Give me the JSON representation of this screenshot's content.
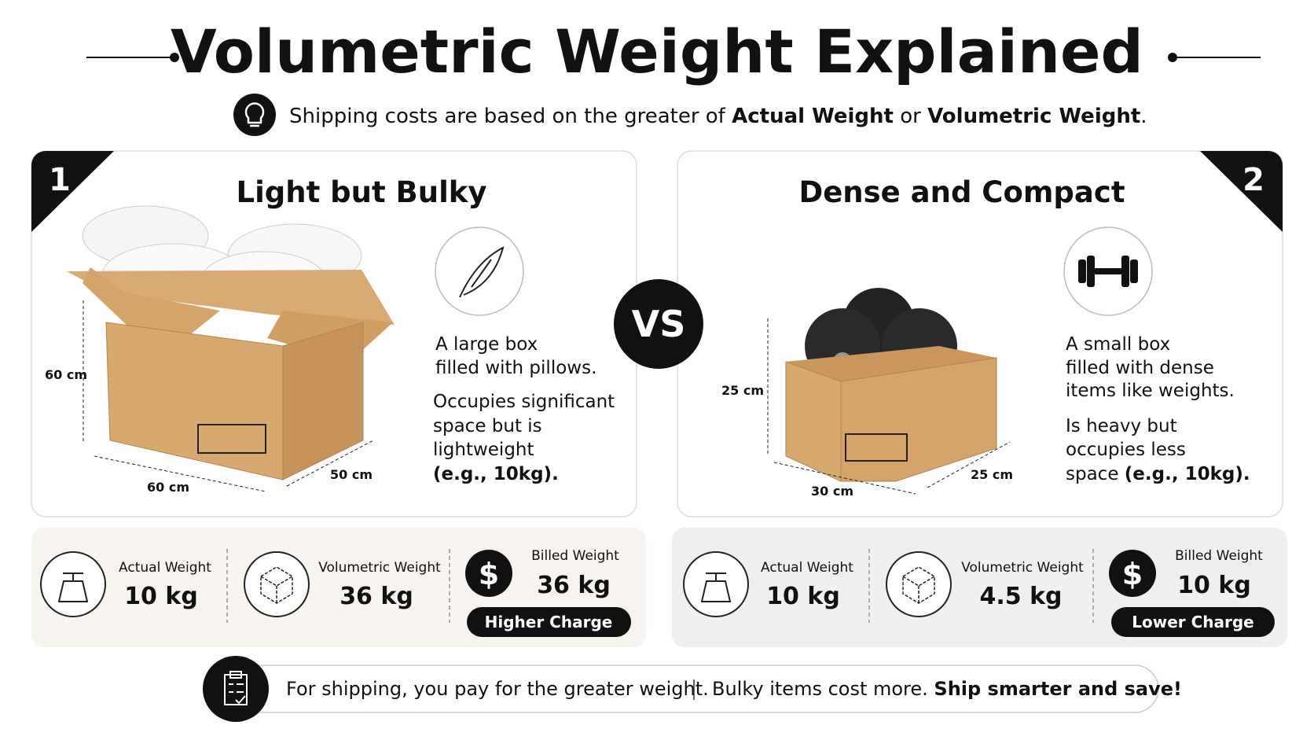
{
  "header": {
    "title": "Volumetric Weight Explained",
    "subtitle": [
      "Shipping costs are based on the greater of ",
      "Actual Weight",
      " or ",
      "Volumetric Weight",
      "."
    ]
  },
  "vs": "VS",
  "panels": [
    {
      "number": "1",
      "title": "Light but Bulky",
      "dimensions": [
        "60 cm",
        "60 cm",
        "50 cm"
      ],
      "description": [
        "A large box",
        "filled with pillows."
      ],
      "detail": [
        "Occupies significant",
        "space but is",
        "lightweight"
      ],
      "example": "(e.g., 10kg).",
      "stats": [
        {
          "label": "Actual Weight",
          "value": "10 kg"
        },
        {
          "label": "Volumetric Weight",
          "value": "36 kg"
        },
        {
          "label": "Billed Weight",
          "value": "36 kg"
        }
      ],
      "badge": "Higher Charge"
    },
    {
      "number": "2",
      "title": "Dense and Compact",
      "dimensions": [
        "25 cm",
        "30 cm",
        "25 cm"
      ],
      "description": [
        "A small box",
        "filled with dense",
        "items like weights."
      ],
      "detail": [
        "Is heavy but",
        "occupies less",
        "space "
      ],
      "example": "(e.g., 10kg).",
      "stats": [
        {
          "label": "Actual Weight",
          "value": "10 kg"
        },
        {
          "label": "Volumetric Weight",
          "value": "4.5 kg"
        },
        {
          "label": "Billed Weight",
          "value": "10 kg"
        }
      ],
      "badge": "Lower Charge"
    }
  ],
  "footer": [
    "For shipping, you pay for the greater weight.",
    "Bulky items cost more. ",
    "Ship smarter and save!"
  ]
}
